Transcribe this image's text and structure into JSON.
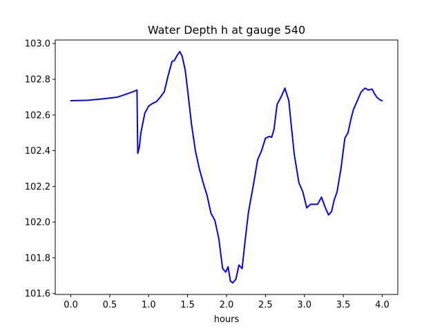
{
  "chart_data": {
    "type": "line",
    "title": "Water Depth h at gauge 540",
    "xlabel": "hours",
    "ylabel": "",
    "xlim": [
      -0.2,
      4.2
    ],
    "ylim": [
      101.595,
      103.02
    ],
    "xticks": [
      0.0,
      0.5,
      1.0,
      1.5,
      2.0,
      2.5,
      3.0,
      3.5,
      4.0
    ],
    "xtick_labels": [
      "0.0",
      "0.5",
      "1.0",
      "1.5",
      "2.0",
      "2.5",
      "3.0",
      "3.5",
      "4.0"
    ],
    "yticks": [
      101.6,
      101.8,
      102.0,
      102.2,
      102.4,
      102.6,
      102.8,
      103.0
    ],
    "ytick_labels": [
      "101.6",
      "101.8",
      "102.0",
      "102.2",
      "102.4",
      "102.6",
      "102.8",
      "103.0"
    ],
    "grid": false,
    "legend": "none",
    "series": [
      {
        "color": "#0000ff",
        "x": [
          0.0,
          0.2,
          0.4,
          0.6,
          0.7,
          0.8,
          0.85,
          0.86,
          0.88,
          0.9,
          0.95,
          1.0,
          1.05,
          1.1,
          1.15,
          1.2,
          1.25,
          1.3,
          1.33,
          1.36,
          1.4,
          1.43,
          1.47,
          1.5,
          1.55,
          1.6,
          1.65,
          1.7,
          1.75,
          1.8,
          1.85,
          1.9,
          1.95,
          1.99,
          2.02,
          2.05,
          2.08,
          2.12,
          2.16,
          2.2,
          2.24,
          2.28,
          2.3,
          2.35,
          2.4,
          2.45,
          2.5,
          2.55,
          2.58,
          2.61,
          2.65,
          2.7,
          2.75,
          2.8,
          2.83,
          2.87,
          2.93,
          2.98,
          3.03,
          3.08,
          3.12,
          3.17,
          3.22,
          3.27,
          3.31,
          3.35,
          3.38,
          3.42,
          3.47,
          3.52,
          3.56,
          3.6,
          3.63,
          3.68,
          3.73,
          3.78,
          3.82,
          3.87,
          3.9,
          3.93,
          3.97,
          4.0
        ],
        "y": [
          102.68,
          102.682,
          102.69,
          102.7,
          102.715,
          102.73,
          102.74,
          102.385,
          102.42,
          102.5,
          102.61,
          102.65,
          102.665,
          102.675,
          102.7,
          102.73,
          102.82,
          102.9,
          102.905,
          102.93,
          102.955,
          102.93,
          102.85,
          102.74,
          102.55,
          102.4,
          102.3,
          102.22,
          102.15,
          102.05,
          102.01,
          101.91,
          101.74,
          101.72,
          101.75,
          101.67,
          101.66,
          101.68,
          101.76,
          101.74,
          101.9,
          102.05,
          102.1,
          102.22,
          102.35,
          102.4,
          102.47,
          102.48,
          102.475,
          102.52,
          102.66,
          102.7,
          102.75,
          102.68,
          102.55,
          102.38,
          102.22,
          102.17,
          102.08,
          102.1,
          102.1,
          102.1,
          102.14,
          102.08,
          102.04,
          102.06,
          102.12,
          102.17,
          102.3,
          102.47,
          102.5,
          102.58,
          102.63,
          102.68,
          102.73,
          102.75,
          102.74,
          102.745,
          102.72,
          102.7,
          102.685,
          102.68
        ]
      }
    ]
  }
}
